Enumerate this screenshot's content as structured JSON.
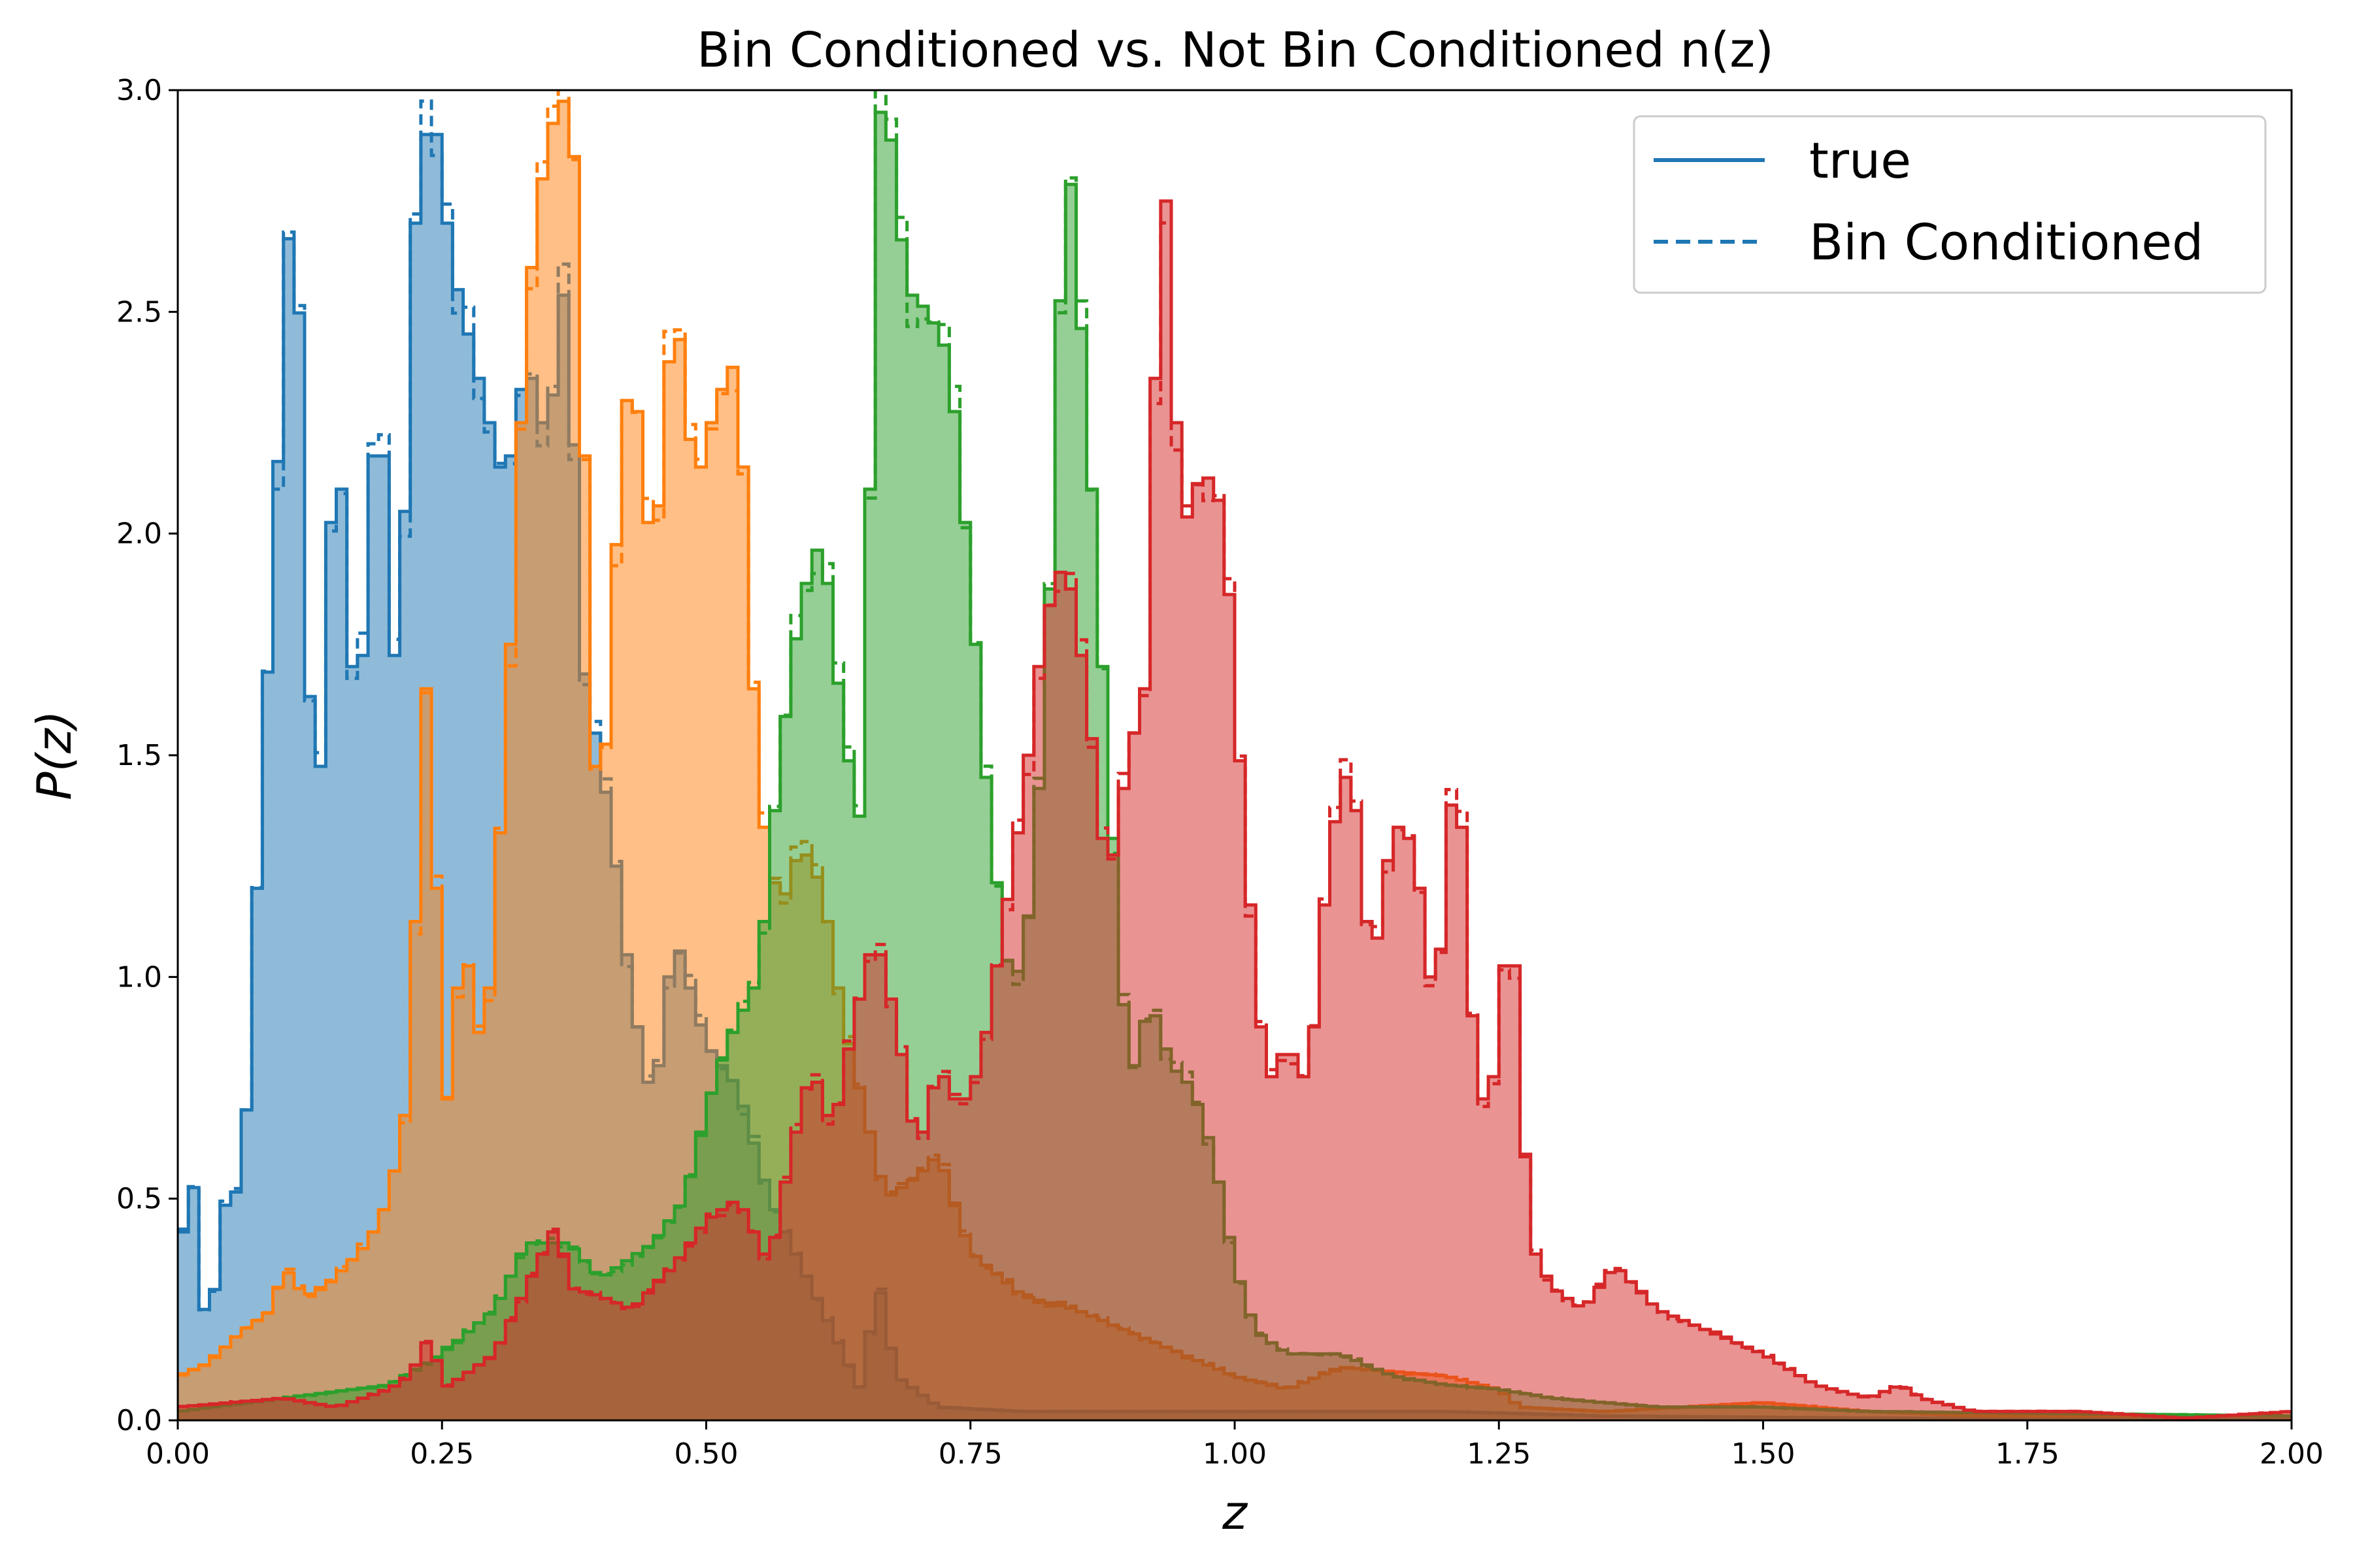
{
  "chart_data": {
    "type": "area",
    "title": "Bin Conditioned vs. Not Bin Conditioned n(z)",
    "xlabel": "z",
    "ylabel": "P(z)",
    "xlim": [
      0,
      2
    ],
    "ylim": [
      0,
      3
    ],
    "grid": false,
    "bin_width": 0.01,
    "xticks": [
      "0.00",
      "0.25",
      "0.50",
      "0.75",
      "1.00",
      "1.25",
      "1.50",
      "1.75",
      "2.00"
    ],
    "xtick_values": [
      0,
      0.25,
      0.5,
      0.75,
      1.0,
      1.25,
      1.5,
      1.75,
      2.0
    ],
    "yticks": [
      "0.0",
      "0.5",
      "1.0",
      "1.5",
      "2.0",
      "2.5",
      "3.0"
    ],
    "ytick_values": [
      0,
      0.5,
      1.0,
      1.5,
      2.0,
      2.5,
      3.0
    ],
    "legend": {
      "placement": "top-right",
      "entries": [
        {
          "label": "true",
          "style": "solid"
        },
        {
          "label": "Bin Conditioned",
          "style": "dashed"
        }
      ]
    },
    "series": [
      {
        "color": "#1f77b4",
        "knots": [
          [
            0.0,
            0.1
          ],
          [
            0.01,
            0.75
          ],
          [
            0.02,
            0.3
          ],
          [
            0.03,
            0.2
          ],
          [
            0.05,
            0.58
          ],
          [
            0.06,
            0.45
          ],
          [
            0.08,
            1.45
          ],
          [
            0.1,
            2.4
          ],
          [
            0.11,
            2.93
          ],
          [
            0.13,
            1.2
          ],
          [
            0.15,
            2.3
          ],
          [
            0.17,
            1.5
          ],
          [
            0.19,
            2.4
          ],
          [
            0.21,
            1.5
          ],
          [
            0.22,
            2.6
          ],
          [
            0.24,
            3.0
          ],
          [
            0.26,
            2.6
          ],
          [
            0.29,
            2.3
          ],
          [
            0.31,
            2.1
          ],
          [
            0.33,
            2.4
          ],
          [
            0.35,
            2.2
          ],
          [
            0.37,
            2.65
          ],
          [
            0.38,
            1.75
          ],
          [
            0.41,
            1.35
          ],
          [
            0.43,
            0.95
          ],
          [
            0.45,
            0.7
          ],
          [
            0.47,
            1.1
          ],
          [
            0.5,
            0.85
          ],
          [
            0.53,
            0.75
          ],
          [
            0.56,
            0.5
          ],
          [
            0.6,
            0.3
          ],
          [
            0.63,
            0.15
          ],
          [
            0.65,
            0.05
          ],
          [
            0.66,
            0.35
          ],
          [
            0.68,
            0.1
          ],
          [
            0.72,
            0.03
          ],
          [
            0.8,
            0.02
          ],
          [
            1.0,
            0.02
          ],
          [
            1.2,
            0.02
          ],
          [
            1.35,
            0.01
          ],
          [
            1.6,
            0.005
          ],
          [
            2.0,
            0.002
          ]
        ]
      },
      {
        "color": "#ff7f0e",
        "knots": [
          [
            0.0,
            0.1
          ],
          [
            0.03,
            0.13
          ],
          [
            0.06,
            0.2
          ],
          [
            0.09,
            0.25
          ],
          [
            0.1,
            0.35
          ],
          [
            0.12,
            0.28
          ],
          [
            0.14,
            0.3
          ],
          [
            0.16,
            0.35
          ],
          [
            0.18,
            0.4
          ],
          [
            0.2,
            0.5
          ],
          [
            0.22,
            0.75
          ],
          [
            0.23,
            1.5
          ],
          [
            0.24,
            1.8
          ],
          [
            0.25,
            0.6
          ],
          [
            0.27,
            1.1
          ],
          [
            0.29,
            0.8
          ],
          [
            0.31,
            1.5
          ],
          [
            0.33,
            2.5
          ],
          [
            0.35,
            2.9
          ],
          [
            0.37,
            3.0
          ],
          [
            0.38,
            2.7
          ],
          [
            0.39,
            1.65
          ],
          [
            0.4,
            1.3
          ],
          [
            0.42,
            2.2
          ],
          [
            0.43,
            2.4
          ],
          [
            0.45,
            1.9
          ],
          [
            0.47,
            2.55
          ],
          [
            0.49,
            2.1
          ],
          [
            0.51,
            2.3
          ],
          [
            0.53,
            2.4
          ],
          [
            0.55,
            1.4
          ],
          [
            0.57,
            1.15
          ],
          [
            0.59,
            1.3
          ],
          [
            0.61,
            1.2
          ],
          [
            0.63,
            0.9
          ],
          [
            0.65,
            0.7
          ],
          [
            0.67,
            0.5
          ],
          [
            0.7,
            0.55
          ],
          [
            0.72,
            0.6
          ],
          [
            0.75,
            0.38
          ],
          [
            0.8,
            0.28
          ],
          [
            0.85,
            0.25
          ],
          [
            0.9,
            0.2
          ],
          [
            0.95,
            0.15
          ],
          [
            1.0,
            0.1
          ],
          [
            1.05,
            0.07
          ],
          [
            1.1,
            0.12
          ],
          [
            1.2,
            0.1
          ],
          [
            1.25,
            0.07
          ],
          [
            1.27,
            0.03
          ],
          [
            1.35,
            0.02
          ],
          [
            1.5,
            0.04
          ],
          [
            1.6,
            0.02
          ],
          [
            1.7,
            0.01
          ],
          [
            2.0,
            0.01
          ]
        ]
      },
      {
        "color": "#2ca02c",
        "knots": [
          [
            0.0,
            0.02
          ],
          [
            0.1,
            0.05
          ],
          [
            0.2,
            0.08
          ],
          [
            0.25,
            0.15
          ],
          [
            0.3,
            0.25
          ],
          [
            0.33,
            0.4
          ],
          [
            0.37,
            0.4
          ],
          [
            0.4,
            0.32
          ],
          [
            0.45,
            0.4
          ],
          [
            0.48,
            0.5
          ],
          [
            0.5,
            0.7
          ],
          [
            0.52,
            0.85
          ],
          [
            0.55,
            1.0
          ],
          [
            0.57,
            1.5
          ],
          [
            0.59,
            1.85
          ],
          [
            0.61,
            2.0
          ],
          [
            0.63,
            1.55
          ],
          [
            0.65,
            1.3
          ],
          [
            0.66,
            2.9
          ],
          [
            0.67,
            3.0
          ],
          [
            0.69,
            2.55
          ],
          [
            0.71,
            2.5
          ],
          [
            0.73,
            2.4
          ],
          [
            0.75,
            1.9
          ],
          [
            0.77,
            1.3
          ],
          [
            0.79,
            0.95
          ],
          [
            0.81,
            1.2
          ],
          [
            0.83,
            2.1
          ],
          [
            0.84,
            2.95
          ],
          [
            0.86,
            2.3
          ],
          [
            0.88,
            1.5
          ],
          [
            0.9,
            0.75
          ],
          [
            0.92,
            0.95
          ],
          [
            0.94,
            0.8
          ],
          [
            0.96,
            0.75
          ],
          [
            0.98,
            0.6
          ],
          [
            1.0,
            0.35
          ],
          [
            1.02,
            0.2
          ],
          [
            1.05,
            0.15
          ],
          [
            1.1,
            0.15
          ],
          [
            1.15,
            0.1
          ],
          [
            1.2,
            0.08
          ],
          [
            1.25,
            0.07
          ],
          [
            1.3,
            0.05
          ],
          [
            1.4,
            0.03
          ],
          [
            1.5,
            0.03
          ],
          [
            1.6,
            0.02
          ],
          [
            2.0,
            0.01
          ]
        ]
      },
      {
        "color": "#d62728",
        "knots": [
          [
            0.0,
            0.03
          ],
          [
            0.1,
            0.05
          ],
          [
            0.15,
            0.03
          ],
          [
            0.2,
            0.07
          ],
          [
            0.22,
            0.1
          ],
          [
            0.24,
            0.2
          ],
          [
            0.25,
            0.07
          ],
          [
            0.27,
            0.1
          ],
          [
            0.3,
            0.15
          ],
          [
            0.33,
            0.3
          ],
          [
            0.36,
            0.45
          ],
          [
            0.37,
            0.3
          ],
          [
            0.4,
            0.28
          ],
          [
            0.43,
            0.25
          ],
          [
            0.45,
            0.3
          ],
          [
            0.47,
            0.35
          ],
          [
            0.5,
            0.45
          ],
          [
            0.53,
            0.5
          ],
          [
            0.56,
            0.35
          ],
          [
            0.58,
            0.6
          ],
          [
            0.6,
            0.8
          ],
          [
            0.62,
            0.65
          ],
          [
            0.64,
            0.9
          ],
          [
            0.66,
            1.1
          ],
          [
            0.68,
            0.9
          ],
          [
            0.7,
            0.6
          ],
          [
            0.72,
            0.8
          ],
          [
            0.74,
            0.7
          ],
          [
            0.76,
            0.8
          ],
          [
            0.78,
            1.1
          ],
          [
            0.8,
            1.4
          ],
          [
            0.82,
            1.8
          ],
          [
            0.84,
            1.95
          ],
          [
            0.86,
            1.65
          ],
          [
            0.88,
            1.2
          ],
          [
            0.9,
            1.5
          ],
          [
            0.92,
            1.7
          ],
          [
            0.93,
            3.0
          ],
          [
            0.95,
            2.0
          ],
          [
            0.97,
            2.15
          ],
          [
            0.99,
            2.05
          ],
          [
            1.01,
            1.3
          ],
          [
            1.03,
            0.75
          ],
          [
            1.05,
            0.85
          ],
          [
            1.07,
            0.75
          ],
          [
            1.09,
            1.3
          ],
          [
            1.11,
            1.5
          ],
          [
            1.13,
            1.0
          ],
          [
            1.15,
            1.35
          ],
          [
            1.17,
            1.3
          ],
          [
            1.19,
            0.9
          ],
          [
            1.21,
            1.55
          ],
          [
            1.23,
            0.7
          ],
          [
            1.25,
            0.8
          ],
          [
            1.26,
            1.25
          ],
          [
            1.27,
            0.8
          ],
          [
            1.28,
            0.4
          ],
          [
            1.3,
            0.3
          ],
          [
            1.33,
            0.25
          ],
          [
            1.36,
            0.35
          ],
          [
            1.4,
            0.25
          ],
          [
            1.45,
            0.2
          ],
          [
            1.5,
            0.15
          ],
          [
            1.55,
            0.08
          ],
          [
            1.6,
            0.05
          ],
          [
            1.63,
            0.08
          ],
          [
            1.65,
            0.05
          ],
          [
            1.7,
            0.02
          ],
          [
            1.8,
            0.02
          ],
          [
            1.9,
            0.005
          ],
          [
            2.0,
            0.02
          ]
        ]
      }
    ]
  }
}
